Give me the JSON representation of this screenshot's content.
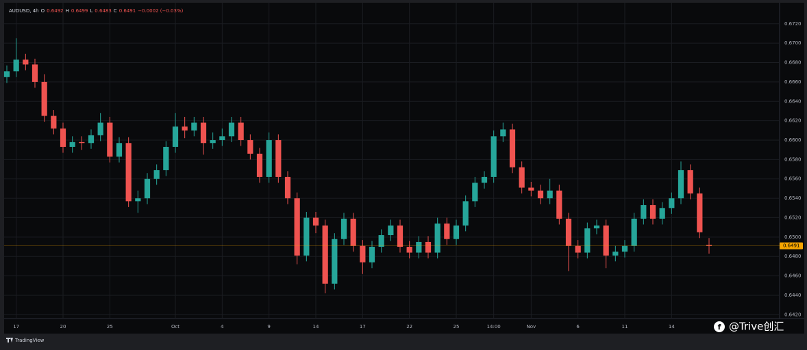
{
  "chart_data": {
    "type": "candlestick",
    "symbol": "AUDUSD, 4h",
    "ohlc_letters": [
      "O",
      "H",
      "L",
      "C"
    ],
    "change_label": "−0.0002 (−0.03%)",
    "brand": "TradingView",
    "watermark": "@Trive创汇",
    "up_color": "#26a69a",
    "down_color": "#ef5350",
    "last_price_color": "#f7a600",
    "grid": true,
    "categories": [
      null,
      "17",
      null,
      null,
      null,
      null,
      "20",
      null,
      null,
      null,
      null,
      "25",
      null,
      null,
      null,
      null,
      null,
      null,
      "Oct",
      null,
      null,
      null,
      null,
      "4",
      null,
      null,
      null,
      null,
      "9",
      null,
      null,
      null,
      null,
      "14",
      null,
      null,
      null,
      null,
      "17",
      null,
      null,
      null,
      null,
      "22",
      null,
      null,
      null,
      null,
      "25",
      null,
      null,
      null,
      "14:00",
      null,
      null,
      null,
      "Nov",
      null,
      null,
      null,
      null,
      "6",
      null,
      null,
      null,
      null,
      "11",
      null,
      null,
      null,
      null,
      "14",
      null,
      null,
      null,
      null
    ],
    "open": [
      0.6665,
      0.6671,
      0.6683,
      0.6678,
      0.666,
      0.6625,
      0.6612,
      0.6593,
      0.6598,
      0.6597,
      0.6605,
      0.6618,
      0.6583,
      0.6597,
      0.6537,
      0.654,
      0.656,
      0.6569,
      0.6593,
      0.6614,
      0.661,
      0.6618,
      0.6597,
      0.66,
      0.6604,
      0.6618,
      0.66,
      0.6586,
      0.6562,
      0.66,
      0.6562,
      0.654,
      0.6481,
      0.652,
      0.6512,
      0.6452,
      0.6498,
      0.6519,
      0.6491,
      0.6474,
      0.649,
      0.6502,
      0.6512,
      0.649,
      0.6484,
      0.6495,
      0.6484,
      0.6514,
      0.6498,
      0.6512,
      0.6537,
      0.6556,
      0.6562,
      0.6604,
      0.6611,
      0.6572,
      0.6551,
      0.6548,
      0.654,
      0.6548,
      0.6519,
      0.6491,
      0.6484,
      0.6509,
      0.6512,
      0.6481,
      0.6485,
      0.6491,
      0.6519,
      0.6533,
      0.6519,
      0.653,
      0.654,
      0.6569,
      0.6545,
      0.6492
    ],
    "high": [
      0.6677,
      0.6705,
      0.6689,
      0.6684,
      0.6668,
      0.6631,
      0.6618,
      0.6604,
      0.6604,
      0.6611,
      0.6628,
      0.6624,
      0.6603,
      0.6603,
      0.6548,
      0.6566,
      0.6575,
      0.6599,
      0.6628,
      0.6624,
      0.6624,
      0.6624,
      0.6608,
      0.6612,
      0.6624,
      0.6624,
      0.6606,
      0.6592,
      0.6608,
      0.6606,
      0.6568,
      0.6546,
      0.6526,
      0.6526,
      0.6518,
      0.6504,
      0.6525,
      0.6525,
      0.6497,
      0.6496,
      0.6508,
      0.6518,
      0.6518,
      0.6496,
      0.6501,
      0.6501,
      0.652,
      0.652,
      0.6518,
      0.6543,
      0.6562,
      0.6568,
      0.661,
      0.6618,
      0.6617,
      0.6578,
      0.6557,
      0.6554,
      0.656,
      0.6554,
      0.6525,
      0.6497,
      0.6515,
      0.6518,
      0.6518,
      0.6491,
      0.6497,
      0.6525,
      0.6539,
      0.6539,
      0.6536,
      0.6546,
      0.6578,
      0.6575,
      0.6551,
      0.6499
    ],
    "low": [
      0.6659,
      0.6665,
      0.6672,
      0.6654,
      0.6619,
      0.6606,
      0.6587,
      0.6587,
      0.659,
      0.6591,
      0.6599,
      0.6577,
      0.6577,
      0.6531,
      0.6525,
      0.6534,
      0.6554,
      0.6563,
      0.6587,
      0.6602,
      0.6604,
      0.6585,
      0.6591,
      0.6594,
      0.6598,
      0.6594,
      0.658,
      0.6556,
      0.6556,
      0.6556,
      0.6534,
      0.6472,
      0.6475,
      0.6504,
      0.6442,
      0.6446,
      0.6492,
      0.6485,
      0.6462,
      0.6468,
      0.6484,
      0.6496,
      0.6484,
      0.6478,
      0.6478,
      0.6478,
      0.6478,
      0.6492,
      0.6492,
      0.6506,
      0.6531,
      0.655,
      0.6556,
      0.6598,
      0.6566,
      0.6545,
      0.6542,
      0.6534,
      0.6534,
      0.6513,
      0.6465,
      0.6478,
      0.6478,
      0.6503,
      0.6468,
      0.6475,
      0.6479,
      0.6485,
      0.6513,
      0.6513,
      0.6513,
      0.6524,
      0.6534,
      0.6539,
      0.6499,
      0.6483
    ],
    "close": [
      0.6671,
      0.6683,
      0.6678,
      0.666,
      0.6625,
      0.6612,
      0.6593,
      0.6598,
      0.6597,
      0.6605,
      0.6618,
      0.6583,
      0.6597,
      0.6537,
      0.654,
      0.656,
      0.6569,
      0.6593,
      0.6614,
      0.661,
      0.6618,
      0.6597,
      0.66,
      0.6604,
      0.6618,
      0.66,
      0.6586,
      0.6562,
      0.66,
      0.6562,
      0.654,
      0.6481,
      0.652,
      0.6512,
      0.6452,
      0.6498,
      0.6519,
      0.6491,
      0.6474,
      0.649,
      0.6502,
      0.6512,
      0.649,
      0.6484,
      0.6495,
      0.6484,
      0.6514,
      0.6498,
      0.6512,
      0.6537,
      0.6556,
      0.6562,
      0.6604,
      0.6611,
      0.6572,
      0.6551,
      0.6548,
      0.654,
      0.6548,
      0.6519,
      0.6491,
      0.6484,
      0.6509,
      0.6512,
      0.6481,
      0.6485,
      0.6491,
      0.6519,
      0.6533,
      0.6519,
      0.653,
      0.654,
      0.6569,
      0.6545,
      0.6505,
      0.6491
    ],
    "ylim": [
      0.6416,
      0.6741
    ],
    "yticks": [
      {
        "value": 0.642,
        "label": "0.6420"
      },
      {
        "value": 0.644,
        "label": "0.6440"
      },
      {
        "value": 0.646,
        "label": "0.6460"
      },
      {
        "value": 0.648,
        "label": "0.6480"
      },
      {
        "value": 0.65,
        "label": "0.6500"
      },
      {
        "value": 0.652,
        "label": "0.6520"
      },
      {
        "value": 0.654,
        "label": "0.6540"
      },
      {
        "value": 0.656,
        "label": "0.6560"
      },
      {
        "value": 0.658,
        "label": "0.6580"
      },
      {
        "value": 0.66,
        "label": "0.6600"
      },
      {
        "value": 0.662,
        "label": "0.6620"
      },
      {
        "value": 0.664,
        "label": "0.6640"
      },
      {
        "value": 0.666,
        "label": "0.6660"
      },
      {
        "value": 0.668,
        "label": "0.6680"
      },
      {
        "value": 0.67,
        "label": "0.6700"
      },
      {
        "value": 0.672,
        "label": "0.6720"
      }
    ]
  }
}
